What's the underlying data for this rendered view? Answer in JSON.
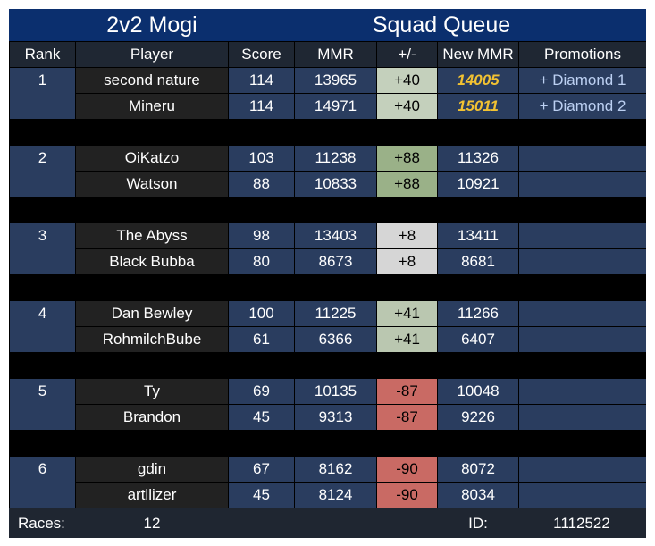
{
  "title_left": "2v2 Mogi",
  "title_right": "Squad Queue",
  "columns": [
    "Rank",
    "Player",
    "Score",
    "MMR",
    "+/-",
    "New MMR",
    "Promotions"
  ],
  "teams": [
    {
      "rank": 1,
      "change_color": "#c4d0bc",
      "players": [
        {
          "player": "second nature",
          "score": 114,
          "mmr": 13965,
          "change": "+40",
          "new_mmr": 14005,
          "promotion": "+ Diamond 1"
        },
        {
          "player": "Mineru",
          "score": 114,
          "mmr": 14971,
          "change": "+40",
          "new_mmr": 15011,
          "promotion": "+ Diamond 2"
        }
      ]
    },
    {
      "rank": 2,
      "change_color": "#9ab188",
      "players": [
        {
          "player": "OiKatzo",
          "score": 103,
          "mmr": 11238,
          "change": "+88",
          "new_mmr": 11326
        },
        {
          "player": "Watson",
          "score": 88,
          "mmr": 10833,
          "change": "+88",
          "new_mmr": 10921
        }
      ]
    },
    {
      "rank": 3,
      "change_color": "#d6d6d6",
      "players": [
        {
          "player": "The Abyss",
          "score": 98,
          "mmr": 13403,
          "change": "+8",
          "new_mmr": 13411
        },
        {
          "player": "Black Bubba",
          "score": 80,
          "mmr": 8673,
          "change": "+8",
          "new_mmr": 8681
        }
      ]
    },
    {
      "rank": 4,
      "change_color": "#bac7b0",
      "players": [
        {
          "player": "Dan Bewley",
          "score": 100,
          "mmr": 11225,
          "change": "+41",
          "new_mmr": 11266
        },
        {
          "player": "RohmilchBube",
          "score": 61,
          "mmr": 6366,
          "change": "+41",
          "new_mmr": 6407
        }
      ]
    },
    {
      "rank": 5,
      "change_color": "#c96a64",
      "players": [
        {
          "player": "Ty",
          "score": 69,
          "mmr": 10135,
          "change": "-87",
          "new_mmr": 10048
        },
        {
          "player": "Brandon",
          "score": 45,
          "mmr": 9313,
          "change": "-87",
          "new_mmr": 9226
        }
      ]
    },
    {
      "rank": 6,
      "change_color": "#c96a64",
      "players": [
        {
          "player": "gdin",
          "score": 67,
          "mmr": 8162,
          "change": "-90",
          "new_mmr": 8072
        },
        {
          "player": "artllizer",
          "score": 45,
          "mmr": 8124,
          "change": "-90",
          "new_mmr": 8034
        }
      ]
    }
  ],
  "footer": {
    "races_label": "Races:",
    "races": 12,
    "id_label": "ID:",
    "id": 1112522
  }
}
